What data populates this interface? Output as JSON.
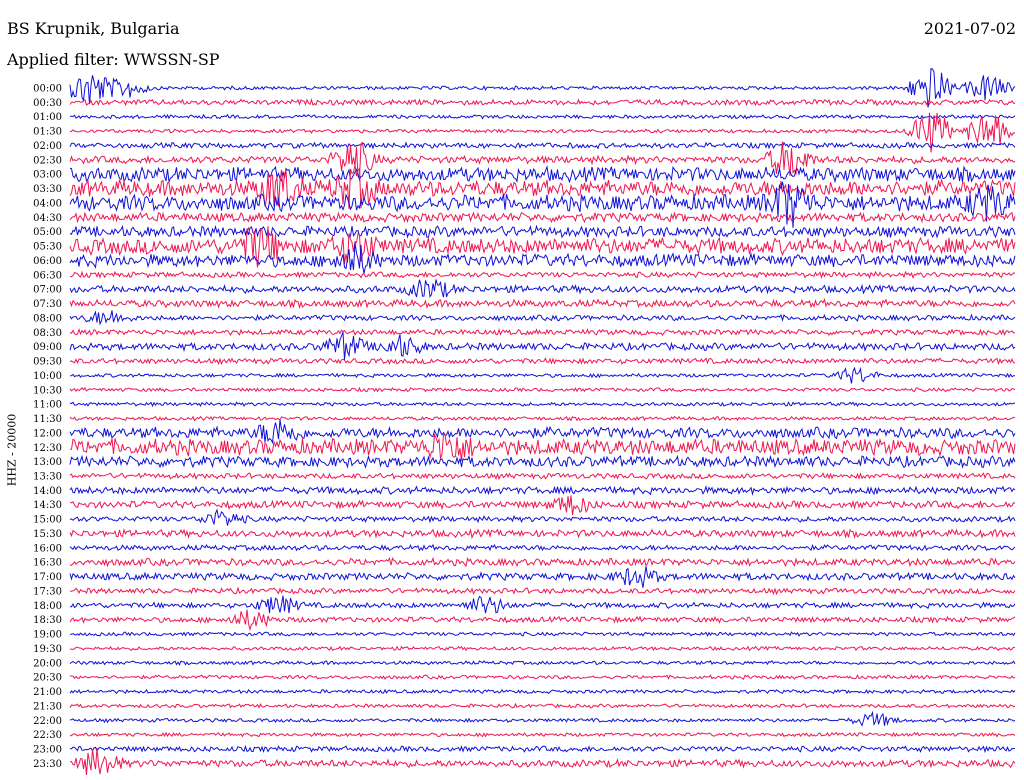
{
  "header": {
    "station": "BS Krupnik, Bulgaria",
    "date": "2021-07-02",
    "filter": "Applied filter: WWSSN-SP",
    "channel": "HHZ - 20000"
  },
  "colors": {
    "blue": "#1010d8",
    "red": "#ee1650"
  },
  "chart_data": {
    "type": "line",
    "title": "BS Krupnik, Bulgaria",
    "subtitle": "Applied filter: WWSSN-SP",
    "ylabel": "HHZ - 20000",
    "categories": [
      "00:00",
      "00:30",
      "01:00",
      "01:30",
      "02:00",
      "02:30",
      "03:00",
      "03:30",
      "04:00",
      "04:30",
      "05:00",
      "05:30",
      "06:00",
      "06:30",
      "07:00",
      "07:30",
      "08:00",
      "08:30",
      "09:00",
      "09:30",
      "10:00",
      "10:30",
      "11:00",
      "11:30",
      "12:00",
      "12:30",
      "13:00",
      "13:30",
      "14:00",
      "14:30",
      "15:00",
      "15:30",
      "16:00",
      "16:30",
      "17:00",
      "17:30",
      "18:00",
      "18:30",
      "19:00",
      "19:30",
      "20:00",
      "20:30",
      "21:00",
      "21:30",
      "22:00",
      "22:30",
      "23:00",
      "23:30"
    ],
    "trace_colors": [
      "blue",
      "red"
    ],
    "noise_amplitude": [
      2,
      3,
      2,
      2,
      3,
      4,
      8,
      9,
      9,
      5,
      6,
      9,
      7,
      3,
      4,
      4,
      3,
      3,
      4,
      3,
      2,
      2,
      2,
      2,
      6,
      9,
      6,
      3,
      4,
      4,
      3,
      4,
      3,
      4,
      4,
      3,
      3,
      3,
      2,
      2,
      2,
      2,
      2,
      2,
      2,
      2,
      3,
      4
    ],
    "events": [
      {
        "row": 0,
        "x": 0.02,
        "amp": 20
      },
      {
        "row": 0,
        "x": 0.06,
        "amp": 10
      },
      {
        "row": 0,
        "x": 0.91,
        "amp": 22
      },
      {
        "row": 0,
        "x": 0.97,
        "amp": 14
      },
      {
        "row": 3,
        "x": 0.91,
        "amp": 22
      },
      {
        "row": 3,
        "x": 0.97,
        "amp": 22
      },
      {
        "row": 5,
        "x": 0.3,
        "amp": 20
      },
      {
        "row": 5,
        "x": 0.76,
        "amp": 20
      },
      {
        "row": 7,
        "x": 0.22,
        "amp": 20
      },
      {
        "row": 7,
        "x": 0.3,
        "amp": 18
      },
      {
        "row": 8,
        "x": 0.76,
        "amp": 22
      },
      {
        "row": 8,
        "x": 0.97,
        "amp": 14
      },
      {
        "row": 11,
        "x": 0.2,
        "amp": 18
      },
      {
        "row": 11,
        "x": 0.3,
        "amp": 15
      },
      {
        "row": 12,
        "x": 0.3,
        "amp": 14
      },
      {
        "row": 14,
        "x": 0.38,
        "amp": 10
      },
      {
        "row": 16,
        "x": 0.04,
        "amp": 7
      },
      {
        "row": 18,
        "x": 0.29,
        "amp": 12
      },
      {
        "row": 18,
        "x": 0.35,
        "amp": 10
      },
      {
        "row": 20,
        "x": 0.83,
        "amp": 8
      },
      {
        "row": 24,
        "x": 0.22,
        "amp": 12
      },
      {
        "row": 25,
        "x": 0.4,
        "amp": 14
      },
      {
        "row": 29,
        "x": 0.53,
        "amp": 9
      },
      {
        "row": 30,
        "x": 0.16,
        "amp": 8
      },
      {
        "row": 34,
        "x": 0.6,
        "amp": 10
      },
      {
        "row": 36,
        "x": 0.22,
        "amp": 9
      },
      {
        "row": 36,
        "x": 0.44,
        "amp": 9
      },
      {
        "row": 37,
        "x": 0.19,
        "amp": 9
      },
      {
        "row": 44,
        "x": 0.85,
        "amp": 7
      },
      {
        "row": 47,
        "x": 0.03,
        "amp": 14
      }
    ]
  }
}
